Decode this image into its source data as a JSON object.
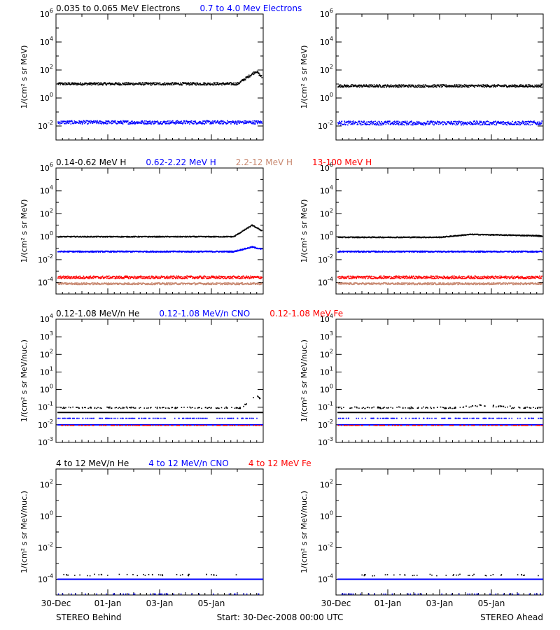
{
  "footer": {
    "left_label": "STEREO Behind",
    "center_label": "Start: 30-Dec-2008 00:00 UTC",
    "right_label": "STEREO Ahead"
  },
  "x_ticks": [
    "30-Dec",
    "01-Jan",
    "03-Jan",
    "05-Jan"
  ],
  "chart_data": [
    {
      "type": "scatter",
      "row": 0,
      "ylabel": "1/(cm² s sr MeV)",
      "ylim_exp": [
        -3,
        6
      ],
      "major_tick_exps": [
        -2,
        0,
        2,
        4,
        6
      ],
      "minor_step": 1,
      "legend": [
        {
          "name": "0.035 to 0.065 MeV Electrons",
          "color": "#000000"
        },
        {
          "name": "0.7 to 4.0 Mev Electrons",
          "color": "#0000ff"
        }
      ],
      "series_behind": [
        {
          "color": "#000000",
          "base_log": 1.05,
          "noise": 0.09,
          "events": [
            {
              "start": 0.88,
              "peak": 0.97,
              "end": 1.0,
              "add": 0.9
            }
          ]
        },
        {
          "color": "#0000ff",
          "base_log": -1.7,
          "noise": 0.12,
          "events": []
        }
      ],
      "series_ahead": [
        {
          "color": "#000000",
          "base_log": 0.9,
          "noise": 0.09,
          "events": []
        },
        {
          "color": "#0000ff",
          "base_log": -1.75,
          "noise": 0.14,
          "events": []
        }
      ]
    },
    {
      "type": "scatter",
      "row": 1,
      "ylabel": "1/(cm² s sr MeV)",
      "ylim_exp": [
        -5,
        6
      ],
      "major_tick_exps": [
        -4,
        -2,
        0,
        2,
        4,
        6
      ],
      "minor_step": 1,
      "legend": [
        {
          "name": "0.14-0.62 MeV H",
          "color": "#000000"
        },
        {
          "name": "0.62-2.22 MeV H",
          "color": "#0000ff"
        },
        {
          "name": "2.2-12 MeV H",
          "color": "#c88870"
        },
        {
          "name": "13-100 MeV H",
          "color": "#ff0000"
        }
      ],
      "series_behind": [
        {
          "color": "#000000",
          "base_log": 0.05,
          "noise": 0.04,
          "events": [
            {
              "start": 0.86,
              "peak": 0.95,
              "end": 1.0,
              "add": 1.0
            }
          ]
        },
        {
          "color": "#0000ff",
          "base_log": -1.25,
          "noise": 0.05,
          "events": [
            {
              "start": 0.86,
              "peak": 0.95,
              "end": 1.0,
              "add": 0.4
            }
          ]
        },
        {
          "color": "#ff0000",
          "base_log": -3.5,
          "noise": 0.12,
          "events": []
        },
        {
          "color": "#c88870",
          "base_log": -4.05,
          "noise": 0.08,
          "events": []
        }
      ],
      "series_ahead": [
        {
          "color": "#000000",
          "base_log": 0.0,
          "noise": 0.04,
          "events": [
            {
              "start": 0.5,
              "peak": 0.65,
              "end": 1.0,
              "add": 0.25
            }
          ]
        },
        {
          "color": "#0000ff",
          "base_log": -1.25,
          "noise": 0.05,
          "events": []
        },
        {
          "color": "#ff0000",
          "base_log": -3.5,
          "noise": 0.12,
          "events": []
        },
        {
          "color": "#c88870",
          "base_log": -4.05,
          "noise": 0.08,
          "events": []
        }
      ]
    },
    {
      "type": "scatter",
      "row": 2,
      "ylabel": "1/(cm² s sr MeV/nuc.)",
      "ylim_exp": [
        -3,
        4
      ],
      "major_tick_exps": [
        -3,
        -2,
        -1,
        0,
        1,
        2,
        3,
        4
      ],
      "minor_step": 1,
      "legend": [
        {
          "name": "0.12-1.08 MeV/n He",
          "color": "#000000"
        },
        {
          "name": "0.12-1.08 MeV/n CNO",
          "color": "#0000ff"
        },
        {
          "name": "0.12-1.08 MeV Fe",
          "color": "#ff0000"
        }
      ],
      "series_behind": [
        {
          "color": "#000000",
          "base_log": -1.3,
          "noise": 0.0,
          "events": [],
          "line": true
        },
        {
          "color": "#000000",
          "base_log": -1.0,
          "noise": 0.04,
          "events": [
            {
              "start": 0.9,
              "peak": 0.97,
              "end": 1.0,
              "add": 0.75
            }
          ],
          "sparse": true
        },
        {
          "color": "#0000ff",
          "base_log": -1.6,
          "noise": 0.0,
          "events": [],
          "sparse": true
        },
        {
          "color": "#0000ff",
          "base_log": -2.0,
          "noise": 0.0,
          "events": [],
          "line": true
        },
        {
          "color": "#ff0000",
          "base_log": -2.0,
          "noise": 0.0,
          "events": [],
          "sparse": true
        }
      ],
      "series_ahead": [
        {
          "color": "#000000",
          "base_log": -1.3,
          "noise": 0.0,
          "events": [],
          "line": true
        },
        {
          "color": "#000000",
          "base_log": -1.0,
          "noise": 0.05,
          "events": [
            {
              "start": 0.55,
              "peak": 0.7,
              "end": 0.85,
              "add": 0.12
            }
          ],
          "sparse": true
        },
        {
          "color": "#0000ff",
          "base_log": -1.6,
          "noise": 0.0,
          "events": [],
          "sparse": true
        },
        {
          "color": "#0000ff",
          "base_log": -2.0,
          "noise": 0.0,
          "events": [],
          "line": true
        },
        {
          "color": "#ff0000",
          "base_log": -2.0,
          "noise": 0.0,
          "events": [],
          "sparse": true
        }
      ]
    },
    {
      "type": "scatter",
      "row": 3,
      "ylabel": "1/(cm² s sr MeV/nuc.)",
      "ylim_exp": [
        -5,
        3
      ],
      "major_tick_exps": [
        -4,
        -2,
        0,
        2
      ],
      "minor_step": 1,
      "legend": [
        {
          "name": "4 to 12 MeV/n He",
          "color": "#000000"
        },
        {
          "name": "4 to 12 MeV/n CNO",
          "color": "#0000ff"
        },
        {
          "name": "4 to 12 MeV Fe",
          "color": "#ff0000"
        }
      ],
      "series_behind": [
        {
          "color": "#0000ff",
          "base_log": -4.0,
          "noise": 0.0,
          "events": [],
          "line": true
        },
        {
          "color": "#000000",
          "base_log": -3.7,
          "noise": 0.05,
          "events": [],
          "veryspare": true
        },
        {
          "color": "#0000ff",
          "base_log": -4.9,
          "noise": 0.0,
          "events": [],
          "veryspare": true
        }
      ],
      "series_ahead": [
        {
          "color": "#0000ff",
          "base_log": -4.0,
          "noise": 0.0,
          "events": [],
          "line": true
        },
        {
          "color": "#000000",
          "base_log": -3.7,
          "noise": 0.05,
          "events": [],
          "veryspare": true
        },
        {
          "color": "#0000ff",
          "base_log": -4.9,
          "noise": 0.0,
          "events": [],
          "veryspare": true
        }
      ]
    }
  ]
}
